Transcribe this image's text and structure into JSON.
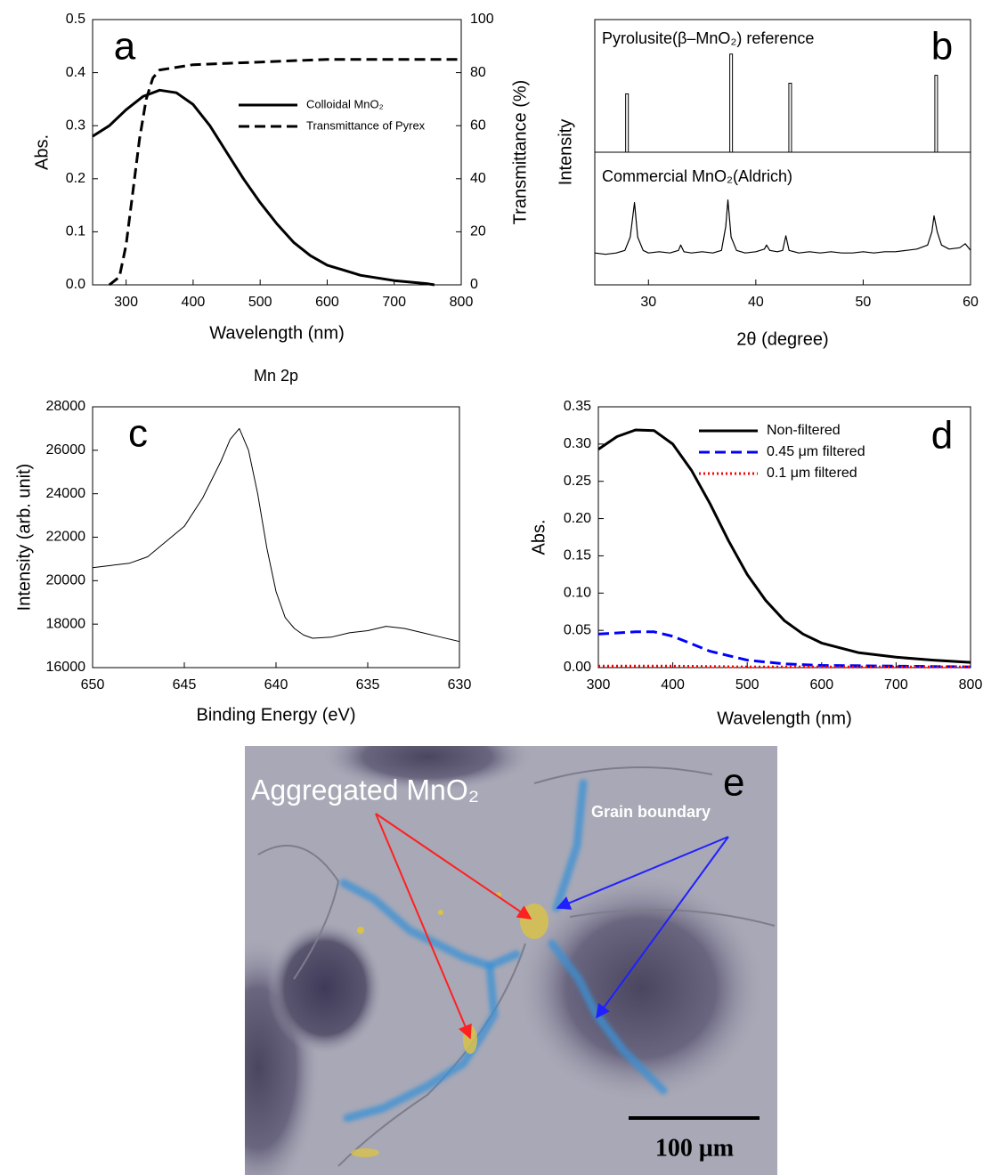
{
  "chart_data": [
    {
      "type": "line",
      "label": "a",
      "x_label": "Wavelength (nm)",
      "y_label": "Abs.",
      "y2_label": "Transmittance (%)",
      "xlim": [
        250,
        800
      ],
      "xticks": [
        300,
        400,
        500,
        600,
        700,
        800
      ],
      "ylim": [
        0,
        0.5
      ],
      "yticks": [
        {
          "value": 0,
          "label": "0.0"
        },
        0.1,
        0.2,
        0.3,
        0.4,
        0.5
      ],
      "y2lim": [
        0,
        100
      ],
      "y2ticks": [
        0,
        20,
        40,
        60,
        80,
        100
      ],
      "legend": "center right",
      "series": [
        {
          "name": "Colloidal MnO₂",
          "color": "#000000",
          "style": "solid",
          "x": [
            250,
            275,
            300,
            325,
            350,
            375,
            400,
            425,
            450,
            475,
            500,
            525,
            550,
            575,
            600,
            650,
            700,
            750,
            760
          ],
          "values": [
            0.28,
            0.3,
            0.33,
            0.355,
            0.367,
            0.362,
            0.34,
            0.3,
            0.25,
            0.2,
            0.155,
            0.115,
            0.08,
            0.055,
            0.037,
            0.018,
            0.008,
            0.002,
            0.0
          ]
        },
        {
          "name": "Transmittance of Pyrex",
          "color": "#000000",
          "style": "dashed",
          "axis": "y2",
          "x": [
            275,
            290,
            300,
            310,
            320,
            330,
            340,
            350,
            400,
            500,
            600,
            700,
            800
          ],
          "values": [
            0,
            3,
            15,
            35,
            55,
            70,
            78,
            81,
            83,
            84,
            85,
            85,
            85
          ]
        }
      ]
    },
    {
      "type": "xrd",
      "label": "b",
      "x_label": "2θ (degree)",
      "y_label": "Intensity",
      "xlim": [
        25,
        60
      ],
      "xticks": [
        30,
        40,
        50,
        60
      ],
      "ylim": [
        0,
        100
      ],
      "series": [
        {
          "name": "Pyrolusite(β–MnO₂) reference",
          "color": "#000000",
          "style": "stick",
          "x": [
            28.0,
            37.7,
            43.2,
            56.8
          ],
          "values": [
            22,
            37,
            26,
            29
          ]
        },
        {
          "name": "Commercial MnO₂(Aldrich)",
          "color": "#000000",
          "style": "solid",
          "x": [
            25,
            26,
            27,
            27.8,
            28.3,
            28.7,
            29.0,
            29.5,
            30,
            31,
            32,
            32.8,
            33,
            33.3,
            34,
            35,
            36,
            36.8,
            37.2,
            37.4,
            37.7,
            38.2,
            39,
            40,
            40.8,
            41,
            41.3,
            42,
            42.5,
            42.8,
            43.1,
            44,
            45,
            46,
            47,
            48,
            49,
            50,
            51,
            52,
            53,
            54,
            55,
            56,
            56.4,
            56.6,
            56.9,
            57.3,
            58,
            59,
            59.5,
            60
          ],
          "values": [
            12,
            11.5,
            12,
            13,
            18,
            31,
            18,
            13,
            12,
            12.5,
            12,
            13,
            15,
            12.5,
            12,
            12.5,
            12,
            13,
            22,
            32,
            18,
            13,
            12,
            12.5,
            13.5,
            15,
            13,
            12.5,
            13,
            18.5,
            13,
            12,
            12.5,
            12,
            12.5,
            12,
            12,
            12.5,
            12,
            12.5,
            12.5,
            13,
            13.5,
            15,
            20,
            26,
            20,
            15,
            13.5,
            14,
            15.5,
            13
          ]
        }
      ]
    },
    {
      "type": "line",
      "label": "c",
      "title": "Mn 2p",
      "x_label": "Binding Energy (eV)",
      "y_label": "Intensity (arb. unit)",
      "xlim": [
        650,
        630
      ],
      "xticks": [
        650,
        645,
        640,
        635,
        630
      ],
      "ylim": [
        16000,
        28000
      ],
      "yticks": [
        16000,
        18000,
        20000,
        22000,
        24000,
        26000,
        28000
      ],
      "series": [
        {
          "color": "#000000",
          "style": "solid",
          "x": [
            650,
            649,
            648,
            647,
            646,
            645,
            644,
            643,
            642.5,
            642,
            641.5,
            641,
            640.5,
            640,
            639.5,
            639,
            638.5,
            638,
            637,
            636,
            635,
            634,
            633,
            632,
            631,
            630
          ],
          "values": [
            20600,
            20700,
            20800,
            21100,
            21800,
            22500,
            23800,
            25500,
            26500,
            27000,
            26000,
            24000,
            21500,
            19500,
            18300,
            17800,
            17500,
            17350,
            17400,
            17600,
            17700,
            17900,
            17800,
            17600,
            17400,
            17200
          ]
        }
      ]
    },
    {
      "type": "line",
      "label": "d",
      "x_label": "Wavelength (nm)",
      "y_label": "Abs.",
      "xlim": [
        300,
        800
      ],
      "xticks": [
        300,
        400,
        500,
        600,
        700,
        800
      ],
      "ylim": [
        0,
        0.35
      ],
      "yticks": [
        {
          "value": 0,
          "label": "0.00"
        },
        0.05,
        {
          "value": 0.1,
          "label": "0.10"
        },
        0.15,
        {
          "value": 0.2,
          "label": "0.20"
        },
        0.25,
        {
          "value": 0.3,
          "label": "0.30"
        },
        0.35
      ],
      "legend": "upper right",
      "series": [
        {
          "name": "Non-filtered",
          "color": "#000000",
          "style": "solid",
          "x": [
            300,
            325,
            350,
            375,
            400,
            425,
            450,
            475,
            500,
            525,
            550,
            575,
            600,
            650,
            700,
            750,
            800
          ],
          "values": [
            0.293,
            0.31,
            0.319,
            0.318,
            0.3,
            0.265,
            0.22,
            0.17,
            0.125,
            0.09,
            0.063,
            0.045,
            0.033,
            0.02,
            0.014,
            0.01,
            0.007
          ]
        },
        {
          "name": "0.45 μm filtered",
          "color": "#0000ff",
          "style": "dashed",
          "x": [
            300,
            350,
            375,
            400,
            450,
            500,
            550,
            600,
            700,
            800
          ],
          "values": [
            0.045,
            0.048,
            0.048,
            0.042,
            0.022,
            0.01,
            0.005,
            0.003,
            0.002,
            0.001
          ]
        },
        {
          "name": "0.1 μm filtered",
          "color": "#ff0000",
          "style": "dotted",
          "x": [
            300,
            400,
            500,
            800
          ],
          "values": [
            0.002,
            0.002,
            0.001,
            0.001
          ]
        }
      ]
    }
  ],
  "micrograph": {
    "label": "e",
    "annotations": [
      "Aggregated MnO₂",
      "Grain boundary"
    ],
    "scale_bar": "100 μm"
  }
}
